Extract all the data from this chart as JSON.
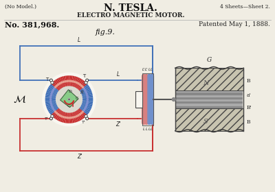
{
  "bg_color": "#f0ede3",
  "diagram_bg": "#f8f6f0",
  "title1": "N. TESLA.",
  "title2": "ELECTRO MAGNETIC MOTOR.",
  "no_model": "(No Model.)",
  "sheets": "4 Sheets—Sheet 2.",
  "patent_no": "No. 381,968.",
  "patented": "Patented May 1, 1888.",
  "fig_label": "fig.9.",
  "motor_label": "ℳ",
  "blue": "#4070b8",
  "red": "#c83030",
  "pink": "#d88080",
  "light_blue": "#7090cc",
  "green": "#70b870",
  "dark_green": "#508850",
  "gray_dark": "#606060",
  "gray_mid": "#909090",
  "gray_light": "#b8b8b0",
  "hatch_color": "#888878",
  "torus_bg": "#c8c0b0",
  "wire_lw": 1.3,
  "mx": 1.0,
  "my": 1.35,
  "outer_r": 0.35,
  "inner_r": 0.19,
  "rotor_r": 0.13
}
